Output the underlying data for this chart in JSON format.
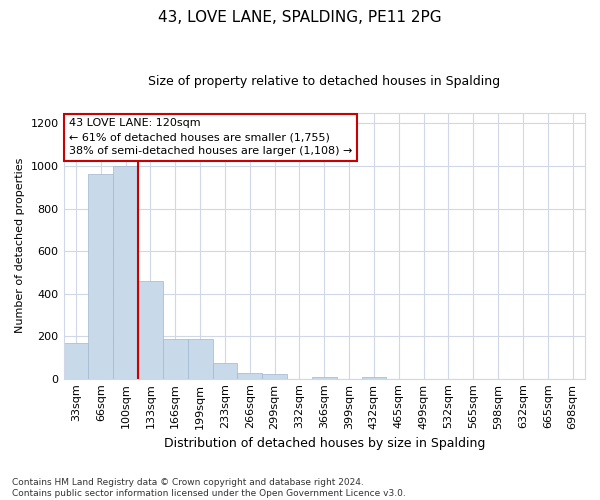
{
  "title": "43, LOVE LANE, SPALDING, PE11 2PG",
  "subtitle": "Size of property relative to detached houses in Spalding",
  "xlabel": "Distribution of detached houses by size in Spalding",
  "ylabel": "Number of detached properties",
  "bins": [
    "33sqm",
    "66sqm",
    "100sqm",
    "133sqm",
    "166sqm",
    "199sqm",
    "233sqm",
    "266sqm",
    "299sqm",
    "332sqm",
    "366sqm",
    "399sqm",
    "432sqm",
    "465sqm",
    "499sqm",
    "532sqm",
    "565sqm",
    "598sqm",
    "632sqm",
    "665sqm",
    "698sqm"
  ],
  "bar_heights": [
    170,
    960,
    1000,
    460,
    185,
    185,
    75,
    25,
    20,
    0,
    10,
    0,
    10,
    0,
    0,
    0,
    0,
    0,
    0,
    0,
    0
  ],
  "bar_color": "#c8d9ea",
  "bar_edge_color": "#a0b8d0",
  "vline_color": "#cc0000",
  "vline_bin_index": 2,
  "annotation_text": "43 LOVE LANE: 120sqm\n← 61% of detached houses are smaller (1,755)\n38% of semi-detached houses are larger (1,108) →",
  "annotation_box_facecolor": "#ffffff",
  "annotation_box_edgecolor": "#cc0000",
  "ylim": [
    0,
    1250
  ],
  "yticks": [
    0,
    200,
    400,
    600,
    800,
    1000,
    1200
  ],
  "footer_text": "Contains HM Land Registry data © Crown copyright and database right 2024.\nContains public sector information licensed under the Open Government Licence v3.0.",
  "fig_facecolor": "#ffffff",
  "plot_facecolor": "#ffffff",
  "grid_color": "#d0d8e8",
  "title_fontsize": 11,
  "subtitle_fontsize": 9
}
